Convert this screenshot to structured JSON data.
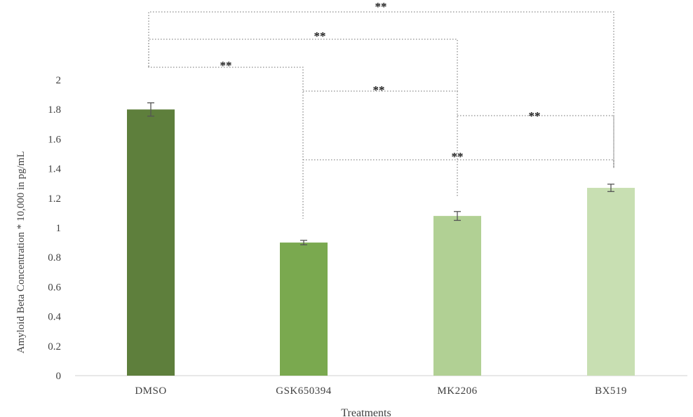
{
  "chart_data": {
    "type": "bar",
    "categories": [
      "DMSO",
      "GSK650394",
      "MK2206",
      "BX519"
    ],
    "values": [
      1.8,
      0.9,
      1.08,
      1.27
    ],
    "errors": [
      0.045,
      0.015,
      0.03,
      0.025
    ],
    "colors": [
      "#5e7f3c",
      "#7aa94f",
      "#b1d094",
      "#c8dfb2"
    ],
    "xlabel": "Treatments",
    "ylabel": "Amyloid Beta Concentration * 10,000 in pg/mL",
    "ylim": [
      0,
      2
    ],
    "yticks": [
      "0",
      "0.2",
      "0.4",
      "0.6",
      "0.8",
      "1",
      "1.2",
      "1.4",
      "1.6",
      "1.8",
      "2"
    ],
    "grid": false,
    "legend": "none",
    "significance": [
      {
        "from": "DMSO",
        "to": "BX519",
        "label": "**"
      },
      {
        "from": "DMSO",
        "to": "MK2206",
        "label": "**"
      },
      {
        "from": "DMSO",
        "to": "GSK650394",
        "label": "**"
      },
      {
        "from": "GSK650394",
        "to": "MK2206",
        "label": "**"
      },
      {
        "from": "MK2206",
        "to": "BX519",
        "label": "**"
      },
      {
        "from": "GSK650394",
        "to": "BX519",
        "label": "**"
      }
    ]
  }
}
